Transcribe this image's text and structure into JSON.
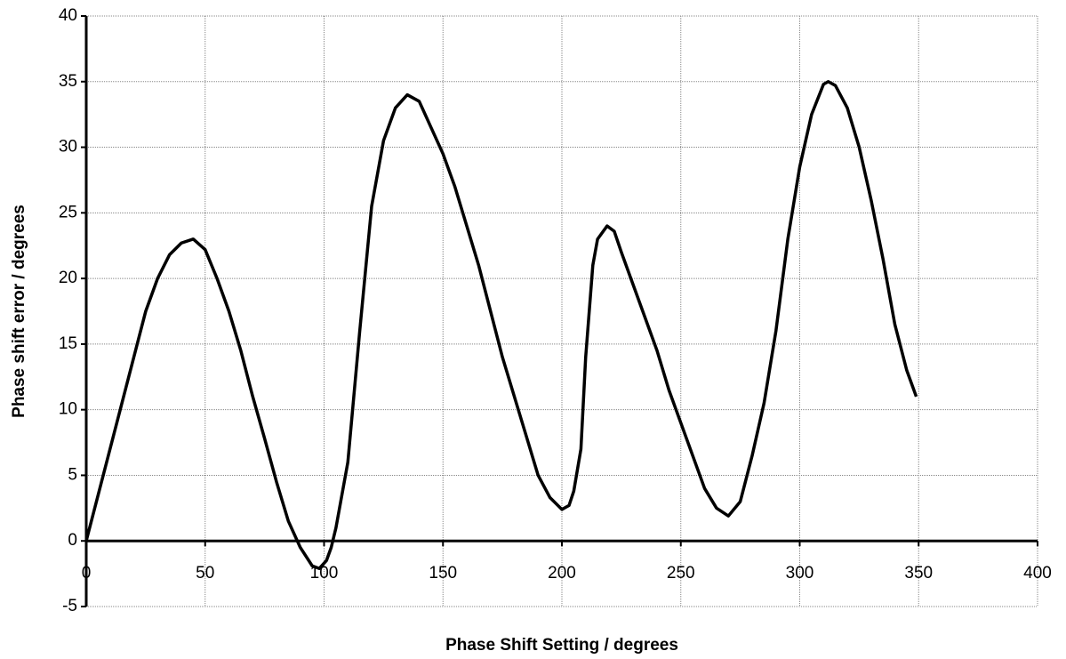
{
  "chart_data": {
    "type": "line",
    "x_label": "Phase Shift Setting / degrees",
    "y_label": "Phase shift error / degrees",
    "x": [
      0,
      5,
      10,
      15,
      20,
      25,
      30,
      35,
      40,
      45,
      50,
      55,
      60,
      65,
      70,
      75,
      80,
      85,
      90,
      95,
      98,
      101,
      103,
      105,
      107,
      110,
      115,
      120,
      125,
      130,
      135,
      140,
      145,
      150,
      155,
      160,
      165,
      170,
      175,
      180,
      185,
      190,
      195,
      200,
      203,
      205,
      208,
      210,
      213,
      215,
      219,
      222,
      225,
      230,
      235,
      240,
      245,
      250,
      255,
      260,
      265,
      270,
      275,
      280,
      285,
      290,
      295,
      300,
      305,
      310,
      312,
      315,
      320,
      325,
      330,
      335,
      340,
      345,
      349
    ],
    "series": [
      {
        "name": "Phase shift error",
        "color": "#000000",
        "values": [
          0,
          3.5,
          7,
          10.5,
          14,
          17.5,
          20,
          21.8,
          22.7,
          23,
          22.2,
          20,
          17.5,
          14.5,
          11,
          7.8,
          4.5,
          1.5,
          -0.5,
          -1.9,
          -2.1,
          -1.5,
          -0.5,
          1,
          3,
          6,
          16,
          25.5,
          30.5,
          33,
          34,
          33.5,
          31.5,
          29.5,
          27,
          24,
          21,
          17.5,
          14,
          11,
          8,
          5,
          3.3,
          2.4,
          2.7,
          3.8,
          7,
          14,
          21,
          23,
          24,
          23.6,
          22,
          19.5,
          17,
          14.5,
          11.5,
          9,
          6.5,
          4,
          2.5,
          1.9,
          3,
          6.5,
          10.5,
          16,
          23,
          28.5,
          32.5,
          34.8,
          35,
          34.7,
          33,
          30,
          26,
          21.5,
          16.5,
          13,
          11
        ]
      }
    ],
    "xlim": [
      0,
      400
    ],
    "xticks": [
      0,
      50,
      100,
      150,
      200,
      250,
      300,
      350,
      400
    ],
    "ylim": [
      -5,
      40
    ],
    "yticks": [
      -5,
      0,
      5,
      10,
      15,
      20,
      25,
      30,
      35,
      40
    ],
    "grid": true
  }
}
